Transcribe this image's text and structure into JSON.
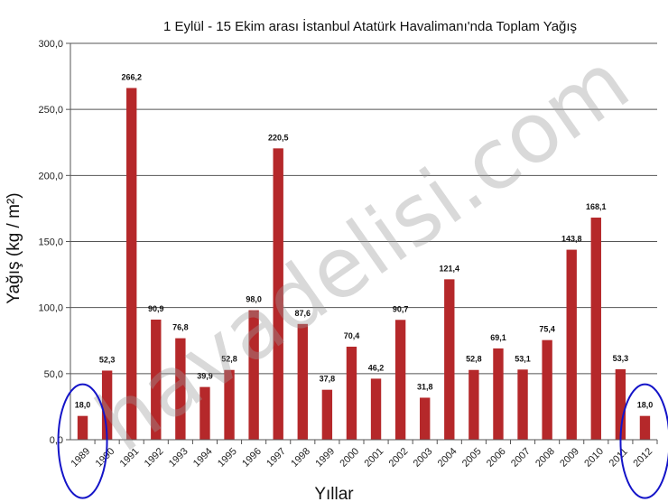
{
  "chart_data": {
    "type": "bar",
    "title": "1 Eylül - 15 Ekim arası İstanbul Atatürk Havalimanı'nda Toplam Yağış",
    "xlabel": "Yıllar",
    "ylabel": "Yağış (kg / m²)",
    "ylim": [
      0,
      300
    ],
    "yticks": [
      "0,0",
      "50,0",
      "100,0",
      "150,0",
      "200,0",
      "250,0",
      "300,0"
    ],
    "grid": true,
    "categories": [
      "1989",
      "1990",
      "1991",
      "1992",
      "1993",
      "1994",
      "1995",
      "1996",
      "1997",
      "1998",
      "1999",
      "2000",
      "2001",
      "2002",
      "2003",
      "2004",
      "2005",
      "2006",
      "2007",
      "2008",
      "2009",
      "2010",
      "2011",
      "2012"
    ],
    "values": [
      18.0,
      52.3,
      266.2,
      90.9,
      76.8,
      39.9,
      52.8,
      98.0,
      220.5,
      87.6,
      37.8,
      70.4,
      46.2,
      90.7,
      31.8,
      121.4,
      52.8,
      69.1,
      53.1,
      75.4,
      143.8,
      168.1,
      53.3,
      18.0
    ],
    "value_labels": [
      "18,0",
      "52,3",
      "266,2",
      "90,9",
      "76,8",
      "39,9",
      "52,8",
      "98,0",
      "220,5",
      "87,6",
      "37,8",
      "70,4",
      "46,2",
      "90,7",
      "31,8",
      "121,4",
      "52,8",
      "69,1",
      "53,1",
      "75,4",
      "143,8",
      "168,1",
      "53,3",
      "18,0"
    ],
    "highlighted_categories": [
      "1989",
      "2012"
    ],
    "bar_color": "#b5282a",
    "highlight_color": "#1414c8",
    "grid_color": "#555555"
  },
  "watermark": "havadelisi.com"
}
